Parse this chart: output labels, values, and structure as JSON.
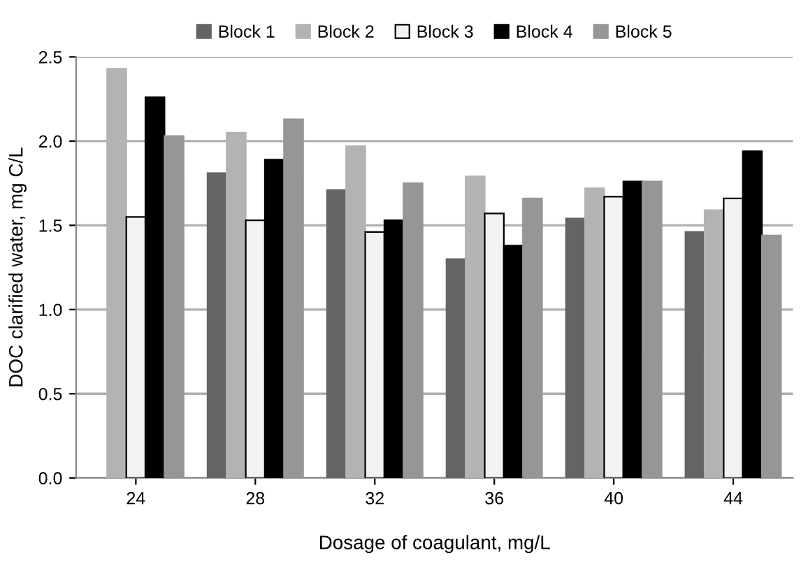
{
  "chart_data": {
    "type": "bar",
    "xlabel": "Dosage of coagulant, mg/L",
    "ylabel": "DOC clarified water, mg C/L",
    "categories": [
      "24",
      "28",
      "32",
      "36",
      "40",
      "44"
    ],
    "series": [
      {
        "name": "Block 1",
        "color": "#646464",
        "values": [
          null,
          1.81,
          1.71,
          1.3,
          1.54,
          1.46
        ]
      },
      {
        "name": "Block 2",
        "color": "#b3b3b3",
        "values": [
          2.43,
          2.05,
          1.97,
          1.79,
          1.72,
          1.59
        ]
      },
      {
        "name": "Block 3",
        "color": "#f2f2f2",
        "values": [
          1.55,
          1.53,
          1.46,
          1.57,
          1.67,
          1.66
        ]
      },
      {
        "name": "Block 4",
        "color": "#000000",
        "values": [
          2.26,
          1.89,
          1.53,
          1.38,
          1.76,
          1.94
        ]
      },
      {
        "name": "Block 5",
        "color": "#969696",
        "values": [
          2.03,
          2.13,
          1.75,
          1.66,
          1.76,
          1.44
        ]
      }
    ],
    "ylim": [
      0,
      2.5
    ],
    "yticks": [
      {
        "value": 0,
        "label": "0.0"
      },
      {
        "value": 0.5,
        "label": "0.5"
      },
      {
        "value": 1,
        "label": "1.0"
      },
      {
        "value": 1.5,
        "label": "1.5"
      },
      {
        "value": 2,
        "label": "2.0"
      },
      {
        "value": 2.5,
        "label": "2.5"
      }
    ],
    "grid": "y",
    "legend": "top"
  }
}
